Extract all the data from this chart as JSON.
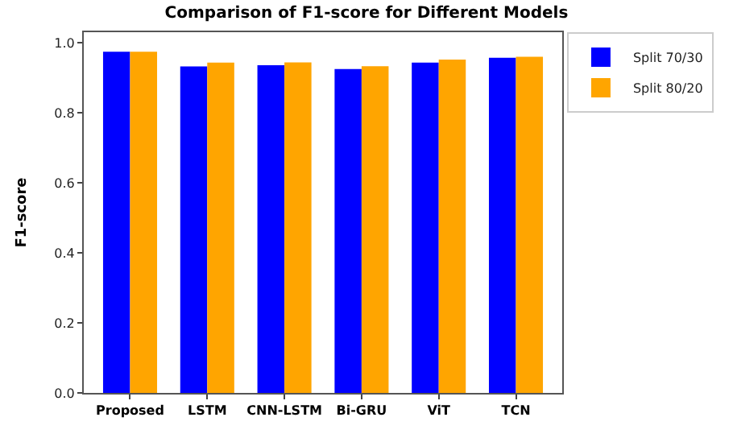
{
  "chart_data": {
    "type": "bar",
    "title": "Comparison of F1-score for Different Models",
    "ylabel": "F1-score",
    "categories": [
      "Proposed",
      "LSTM",
      "CNN-LSTM",
      "Bi-GRU",
      "ViT",
      "TCN"
    ],
    "series": [
      {
        "name": "Split 70/30",
        "color": "#0000ff",
        "values": [
          0.974,
          0.932,
          0.936,
          0.925,
          0.943,
          0.957
        ]
      },
      {
        "name": "Split 80/20",
        "color": "#ffa500",
        "values": [
          0.974,
          0.943,
          0.944,
          0.933,
          0.952,
          0.96
        ]
      }
    ],
    "ylim": [
      0,
      1.03
    ],
    "yticks": [
      {
        "value": 0,
        "label": "0.0"
      },
      {
        "value": 0.2,
        "label": "0.2"
      },
      {
        "value": 0.4,
        "label": "0.4"
      },
      {
        "value": 0.6,
        "label": "0.6"
      },
      {
        "value": 0.8,
        "label": "0.8"
      },
      {
        "value": 1,
        "label": "1.0"
      }
    ],
    "grid": false,
    "legend": "top right"
  }
}
